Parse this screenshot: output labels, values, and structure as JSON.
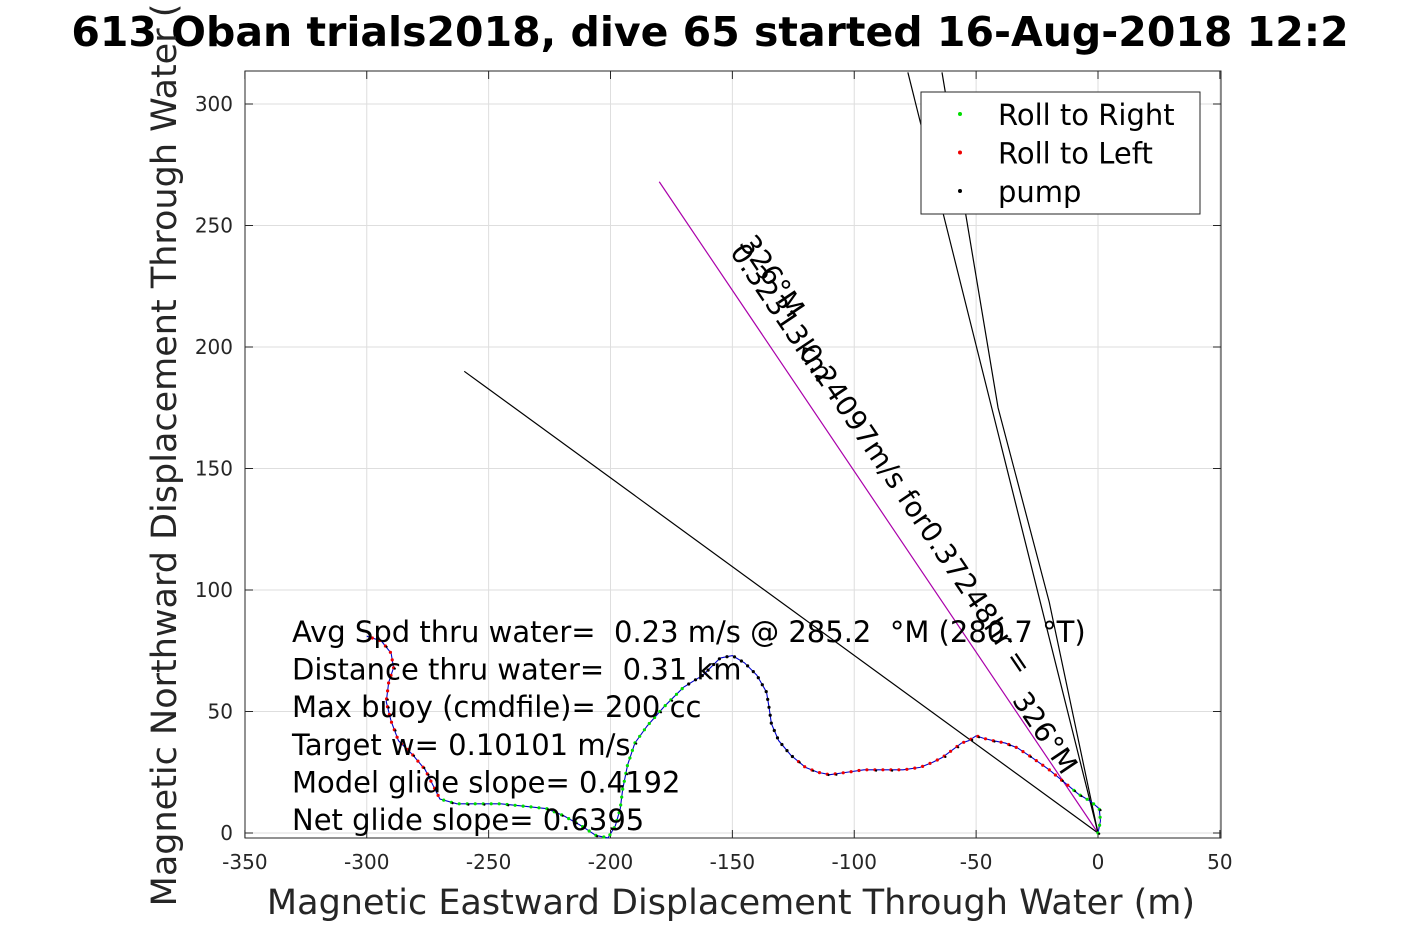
{
  "chart_data": {
    "type": "line",
    "title": "613 Oban trials2018, dive 65 started 16-Aug-2018 12:2",
    "xlabel": "Magnetic Eastward Displacement Through Water (m)",
    "ylabel": "Magnetic Northward Displacement Through Water (",
    "xlim": [
      -350,
      50
    ],
    "ylim": [
      -5,
      313
    ],
    "xticks": [
      -350,
      -300,
      -250,
      -200,
      -150,
      -100,
      -50,
      0,
      50
    ],
    "yticks": [
      0,
      50,
      100,
      150,
      200,
      250,
      300
    ],
    "xtick_labels": [
      "-350",
      "-300",
      "-250",
      "-200",
      "-150",
      "-100",
      "-50",
      "0",
      "50"
    ],
    "ytick_labels": [
      "0",
      "50",
      "100",
      "150",
      "200",
      "250",
      "300"
    ],
    "grid": true,
    "legend_position": "top-right",
    "legend": [
      {
        "label": "Roll to Right",
        "color": "#00dd00"
      },
      {
        "label": "Roll to Left",
        "color": "#ee0000"
      },
      {
        "label": "pump",
        "color": "#000000"
      }
    ],
    "track_color": "#0000cc",
    "track": [
      [
        0,
        0
      ],
      [
        1,
        5
      ],
      [
        0.5,
        10
      ],
      [
        -3,
        13
      ],
      [
        -8,
        16
      ],
      [
        -14,
        21
      ],
      [
        -20,
        26
      ],
      [
        -27,
        31
      ],
      [
        -33,
        35
      ],
      [
        -38,
        37
      ],
      [
        -43,
        38
      ],
      [
        -47,
        39
      ],
      [
        -50,
        40
      ],
      [
        -53,
        38
      ],
      [
        -56,
        37
      ],
      [
        -60,
        34
      ],
      [
        -64,
        31
      ],
      [
        -68,
        29
      ],
      [
        -73,
        27
      ],
      [
        -80,
        26
      ],
      [
        -88,
        26
      ],
      [
        -96,
        26
      ],
      [
        -103,
        25
      ],
      [
        -110,
        24
      ],
      [
        -115,
        25
      ],
      [
        -120,
        27
      ],
      [
        -126,
        32
      ],
      [
        -131,
        38
      ],
      [
        -134,
        45
      ],
      [
        -135,
        52
      ],
      [
        -136,
        58
      ],
      [
        -140,
        65
      ],
      [
        -145,
        70
      ],
      [
        -150,
        73
      ],
      [
        -155,
        72
      ],
      [
        -162,
        65
      ],
      [
        -170,
        60
      ],
      [
        -178,
        52
      ],
      [
        -185,
        44
      ],
      [
        -190,
        37
      ],
      [
        -193,
        28
      ],
      [
        -195,
        18
      ],
      [
        -196,
        10
      ],
      [
        -198,
        3
      ],
      [
        -201,
        -2
      ],
      [
        -206,
        -1
      ],
      [
        -212,
        3
      ],
      [
        -219,
        7
      ],
      [
        -226,
        10
      ],
      [
        -235,
        11
      ],
      [
        -245,
        12
      ],
      [
        -255,
        12
      ],
      [
        -263,
        12
      ],
      [
        -270,
        14
      ],
      [
        -273,
        20
      ],
      [
        -276,
        26
      ],
      [
        -281,
        32
      ],
      [
        -287,
        38
      ],
      [
        -290,
        46
      ],
      [
        -292,
        54
      ],
      [
        -291,
        62
      ],
      [
        -289,
        68
      ],
      [
        -290,
        74
      ],
      [
        -294,
        79
      ],
      [
        -300,
        81
      ]
    ],
    "reference_lines": [
      {
        "name": "heading_line",
        "color": "#aa00aa",
        "points": [
          [
            0,
            0
          ],
          [
            -180,
            268
          ]
        ]
      },
      {
        "name": "steep_line",
        "color": "#000000",
        "points": [
          [
            0,
            0
          ],
          [
            -78,
            313
          ]
        ]
      },
      {
        "name": "secondary_line",
        "color": "#000000",
        "points": [
          [
            0,
            0
          ],
          [
            -20,
            95
          ],
          [
            -41,
            175
          ],
          [
            -64,
            313
          ]
        ]
      },
      {
        "name": "shallow_line",
        "color": "#000000",
        "points": [
          [
            0,
            0
          ],
          [
            -260,
            190
          ]
        ]
      }
    ],
    "annotations": [
      {
        "text": "326°M",
        "x": -137,
        "y": 227,
        "rotation": 56
      },
      {
        "text": "0.32313km",
        "x": -133,
        "y": 212,
        "rotation": 56
      },
      {
        "text": "0.24097m/s for0.37248hr =",
        "x": -78,
        "y": 131,
        "rotation": 56
      },
      {
        "text": "326°M",
        "x": -25,
        "y": 39,
        "rotation": 56
      }
    ],
    "info_lines": [
      "Avg Spd thru water=  0.23 m/s @ 285.2  °M (280.7 °T)",
      "Distance thru water=  0.31 km",
      "Max buoy (cmdfile)= 200 cc",
      "Target w= 0.10101 m/s",
      "Model glide slope= 0.4192",
      "Net glide slope= 0.6395"
    ]
  }
}
